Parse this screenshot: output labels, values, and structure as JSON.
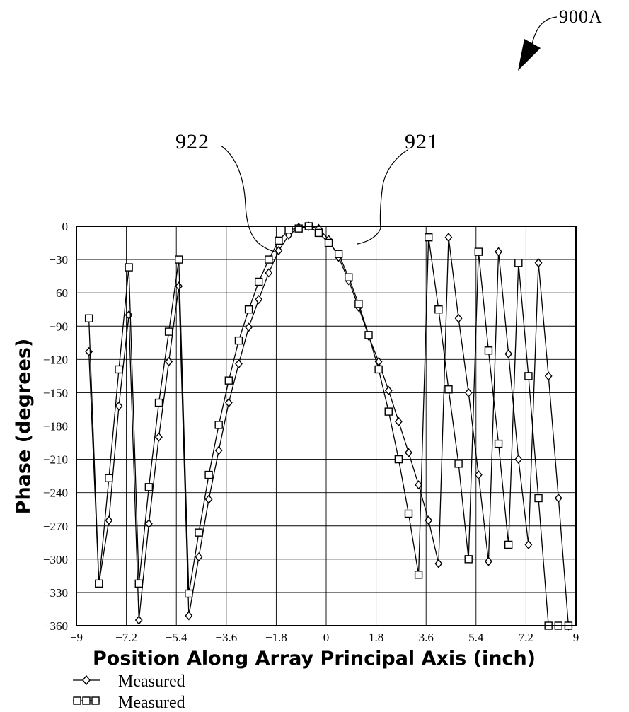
{
  "figure_label": "900A",
  "reference_labels": {
    "left": "922",
    "right": "921"
  },
  "chart_data": {
    "type": "line",
    "xlabel": "Position Along Array Principal Axis (inch)",
    "ylabel": "Phase (degrees)",
    "xlim": [
      -9,
      9
    ],
    "ylim": [
      -360,
      0
    ],
    "x_ticks": [
      "-9",
      "-7.2",
      "-5.4",
      "-3.6",
      "-1.8",
      "0",
      "1.8",
      "3.6",
      "5.4",
      "7.2",
      "9"
    ],
    "y_ticks": [
      "0",
      "-30",
      "-60",
      "-90",
      "-120",
      "-150",
      "-180",
      "-210",
      "-240",
      "-270",
      "-300",
      "-330",
      "-360"
    ],
    "grid": true,
    "legend_position": "below-left",
    "series": [
      {
        "name": "Measured",
        "marker": "diamond",
        "x": [
          -8.55,
          -8.19,
          -7.83,
          -7.47,
          -7.11,
          -6.75,
          -6.39,
          -6.03,
          -5.67,
          -5.31,
          -4.95,
          -4.59,
          -4.23,
          -3.87,
          -3.51,
          -3.15,
          -2.79,
          -2.43,
          -2.07,
          -1.71,
          -1.35,
          -0.99,
          -0.63,
          -0.27,
          0.09,
          0.45,
          0.81,
          1.17,
          1.53,
          1.89,
          2.25,
          2.61,
          2.97,
          3.33,
          3.69,
          4.05,
          4.41,
          4.77,
          5.13,
          5.49,
          5.85,
          6.21,
          6.57,
          6.93,
          7.29,
          7.65,
          8.01,
          8.37,
          8.73
        ],
        "y": [
          -113,
          -322,
          -265,
          -162,
          -80,
          -355,
          -268,
          -190,
          -122,
          -54,
          -351,
          -298,
          -246,
          -202,
          -159,
          -124,
          -91,
          -66,
          -42,
          -22,
          -8,
          -1,
          0,
          -2,
          -12,
          -28,
          -49,
          -73,
          -99,
          -122,
          -148,
          -176,
          -204,
          -233,
          -265,
          -304,
          -10,
          -83,
          -150,
          -224,
          -302,
          -23,
          -115,
          -210,
          -287,
          -33,
          -135,
          -245,
          -360
        ]
      },
      {
        "name": "Measured",
        "marker": "square",
        "x": [
          -8.55,
          -8.19,
          -7.83,
          -7.47,
          -7.11,
          -6.75,
          -6.39,
          -6.03,
          -5.67,
          -5.31,
          -4.95,
          -4.59,
          -4.23,
          -3.87,
          -3.51,
          -3.15,
          -2.79,
          -2.43,
          -2.07,
          -1.71,
          -1.35,
          -0.99,
          -0.63,
          -0.27,
          0.09,
          0.45,
          0.81,
          1.17,
          1.53,
          1.89,
          2.25,
          2.61,
          2.97,
          3.33,
          3.69,
          4.05,
          4.41,
          4.77,
          5.13,
          5.49,
          5.85,
          6.21,
          6.57,
          6.93,
          7.29,
          7.65,
          8.01,
          8.37,
          8.73
        ],
        "y": [
          -83,
          -322,
          -227,
          -129,
          -37,
          -322,
          -235,
          -159,
          -95,
          -30,
          -331,
          -276,
          -224,
          -179,
          -139,
          -103,
          -75,
          -50,
          -30,
          -13,
          -3,
          -2,
          0,
          -6,
          -15,
          -25,
          -46,
          -70,
          -98,
          -129,
          -167,
          -210,
          -259,
          -314,
          -10,
          -75,
          -147,
          -214,
          -300,
          -23,
          -112,
          -196,
          -287,
          -33,
          -135,
          -245,
          -360,
          -360,
          -360
        ]
      }
    ]
  }
}
